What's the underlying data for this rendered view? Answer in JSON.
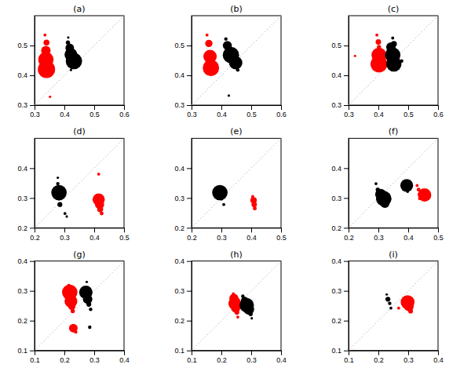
{
  "chart_data": [
    {
      "type": "scatter",
      "title": "(a)",
      "xlim": [
        0.3,
        0.6
      ],
      "ylim": [
        0.3,
        0.6
      ],
      "xticks": [
        0.3,
        0.4,
        0.5,
        0.6
      ],
      "yticks": [
        0.3,
        0.4,
        0.5
      ],
      "series": [
        {
          "color": "#ff0000",
          "x": [
            0.335,
            0.34,
            0.338,
            0.338,
            0.34,
            0.35,
            0.352
          ],
          "values": [
            0.535,
            0.51,
            0.483,
            0.453,
            0.42,
            0.403,
            0.328
          ],
          "size": [
            3,
            12,
            30,
            80,
            100,
            6,
            2
          ]
        },
        {
          "color": "#000000",
          "x": [
            0.413,
            0.412,
            0.418,
            0.422,
            0.432,
            0.448,
            0.422
          ],
          "values": [
            0.527,
            0.51,
            0.492,
            0.47,
            0.448,
            0.438,
            0.418
          ],
          "size": [
            2,
            6,
            25,
            55,
            90,
            5,
            2
          ]
        }
      ]
    },
    {
      "type": "scatter",
      "title": "(b)",
      "xlim": [
        0.3,
        0.6
      ],
      "ylim": [
        0.3,
        0.6
      ],
      "xticks": [
        0.3,
        0.4,
        0.5,
        0.6
      ],
      "yticks": [
        0.3,
        0.4,
        0.5
      ],
      "series": [
        {
          "color": "#ff0000",
          "x": [
            0.352,
            0.358,
            0.362,
            0.365,
            0.368,
            0.348
          ],
          "values": [
            0.535,
            0.507,
            0.463,
            0.425,
            0.405,
            0.418
          ],
          "size": [
            3,
            18,
            60,
            90,
            5,
            3
          ]
        },
        {
          "color": "#000000",
          "x": [
            0.415,
            0.42,
            0.432,
            0.448,
            0.455,
            0.425
          ],
          "values": [
            0.522,
            0.5,
            0.468,
            0.442,
            0.418,
            0.332
          ],
          "size": [
            4,
            28,
            90,
            60,
            4,
            2
          ]
        }
      ]
    },
    {
      "type": "scatter",
      "title": "(c)",
      "xlim": [
        0.3,
        0.6
      ],
      "ylim": [
        0.3,
        0.6
      ],
      "xticks": [
        0.3,
        0.4,
        0.5,
        0.6
      ],
      "yticks": [
        0.3,
        0.4,
        0.5
      ],
      "series": [
        {
          "color": "#ff0000",
          "x": [
            0.395,
            0.4,
            0.402,
            0.402,
            0.402,
            0.405,
            0.322
          ],
          "values": [
            0.535,
            0.512,
            0.495,
            0.468,
            0.438,
            0.418,
            0.465
          ],
          "size": [
            3,
            10,
            6,
            75,
            95,
            4,
            2
          ]
        },
        {
          "color": "#000000",
          "x": [
            0.448,
            0.452,
            0.442,
            0.448,
            0.452,
            0.462,
            0.478
          ],
          "values": [
            0.525,
            0.505,
            0.495,
            0.468,
            0.438,
            0.448,
            0.448
          ],
          "size": [
            3,
            12,
            30,
            80,
            78,
            8,
            4
          ]
        }
      ]
    },
    {
      "type": "scatter",
      "title": "(d)",
      "xlim": [
        0.2,
        0.5
      ],
      "ylim": [
        0.2,
        0.5
      ],
      "xticks": [
        0.2,
        0.3,
        0.4,
        0.5
      ],
      "yticks": [
        0.2,
        0.3,
        0.4
      ],
      "series": [
        {
          "color": "#ff0000",
          "x": [
            0.415,
            0.412,
            0.415,
            0.418,
            0.42,
            0.425
          ],
          "values": [
            0.38,
            0.302,
            0.295,
            0.278,
            0.262,
            0.248
          ],
          "size": [
            3,
            3,
            50,
            28,
            12,
            5
          ]
        },
        {
          "color": "#000000",
          "x": [
            0.278,
            0.278,
            0.282,
            0.282,
            0.285,
            0.302,
            0.308
          ],
          "values": [
            0.368,
            0.348,
            0.318,
            0.298,
            0.278,
            0.248,
            0.238
          ],
          "size": [
            2,
            4,
            80,
            5,
            8,
            3,
            2
          ]
        }
      ]
    },
    {
      "type": "scatter",
      "title": "(e)",
      "xlim": [
        0.2,
        0.5
      ],
      "ylim": [
        0.2,
        0.5
      ],
      "xticks": [
        0.2,
        0.3,
        0.4,
        0.5
      ],
      "yticks": [
        0.2,
        0.3,
        0.4
      ],
      "series": [
        {
          "color": "#ff0000",
          "x": [
            0.405,
            0.408,
            0.41,
            0.412
          ],
          "values": [
            0.305,
            0.292,
            0.278,
            0.265
          ],
          "size": [
            3,
            14,
            10,
            5
          ]
        },
        {
          "color": "#000000",
          "x": [
            0.292,
            0.295,
            0.3,
            0.308
          ],
          "values": [
            0.338,
            0.318,
            0.298,
            0.278
          ],
          "size": [
            2,
            80,
            5,
            3
          ]
        }
      ]
    },
    {
      "type": "scatter",
      "title": "(f)",
      "xlim": [
        0.2,
        0.5
      ],
      "ylim": [
        0.2,
        0.5
      ],
      "xticks": [
        0.2,
        0.3,
        0.4,
        0.5
      ],
      "yticks": [
        0.2,
        0.3,
        0.4
      ],
      "series": [
        {
          "color": "#ff0000",
          "x": [
            0.43,
            0.435,
            0.44,
            0.438,
            0.455
          ],
          "values": [
            0.342,
            0.328,
            0.312,
            0.298,
            0.31
          ],
          "size": [
            3,
            5,
            8,
            3,
            60
          ]
        },
        {
          "color": "#000000",
          "x": [
            0.292,
            0.298,
            0.308,
            0.318,
            0.322,
            0.395,
            0.398
          ],
          "values": [
            0.348,
            0.328,
            0.312,
            0.298,
            0.282,
            0.342,
            0.322
          ],
          "size": [
            3,
            6,
            42,
            80,
            28,
            55,
            3
          ]
        }
      ]
    },
    {
      "type": "scatter",
      "title": "(g)",
      "xlim": [
        0.1,
        0.4
      ],
      "ylim": [
        0.1,
        0.4
      ],
      "xticks": [
        0.1,
        0.2,
        0.3,
        0.4
      ],
      "yticks": [
        0.1,
        0.2,
        0.3,
        0.4
      ],
      "series": [
        {
          "color": "#ff0000",
          "x": [
            0.218,
            0.222,
            0.225,
            0.228,
            0.23,
            0.238,
            0.215
          ],
          "values": [
            0.295,
            0.265,
            0.248,
            0.232,
            0.175,
            0.162,
            0.318
          ],
          "size": [
            80,
            55,
            18,
            6,
            25,
            4,
            4
          ]
        },
        {
          "color": "#000000",
          "x": [
            0.272,
            0.278,
            0.282,
            0.288,
            0.285,
            0.275
          ],
          "values": [
            0.295,
            0.272,
            0.255,
            0.238,
            0.178,
            0.33
          ],
          "size": [
            60,
            30,
            8,
            4,
            4,
            2
          ]
        }
      ]
    },
    {
      "type": "scatter",
      "title": "(h)",
      "xlim": [
        0.1,
        0.4
      ],
      "ylim": [
        0.1,
        0.4
      ],
      "xticks": [
        0.1,
        0.2,
        0.3,
        0.4
      ],
      "yticks": [
        0.1,
        0.2,
        0.3,
        0.4
      ],
      "series": [
        {
          "color": "#ff0000",
          "x": [
            0.24,
            0.242,
            0.245,
            0.248,
            0.252,
            0.255
          ],
          "values": [
            0.29,
            0.275,
            0.258,
            0.242,
            0.228,
            0.212
          ],
          "size": [
            3,
            28,
            55,
            28,
            8,
            3
          ]
        },
        {
          "color": "#000000",
          "x": [
            0.272,
            0.278,
            0.285,
            0.292,
            0.298,
            0.302
          ],
          "values": [
            0.282,
            0.268,
            0.252,
            0.238,
            0.222,
            0.208
          ],
          "size": [
            4,
            18,
            70,
            38,
            6,
            2
          ]
        }
      ]
    },
    {
      "type": "scatter",
      "title": "(i)",
      "xlim": [
        0.1,
        0.4
      ],
      "ylim": [
        0.1,
        0.4
      ],
      "xticks": [
        0.1,
        0.2,
        0.3,
        0.4
      ],
      "yticks": [
        0.1,
        0.2,
        0.3,
        0.4
      ],
      "series": [
        {
          "color": "#ff0000",
          "x": [
            0.292,
            0.298,
            0.302,
            0.308,
            0.268
          ],
          "values": [
            0.278,
            0.262,
            0.248,
            0.232,
            0.242
          ],
          "size": [
            3,
            65,
            32,
            8,
            3
          ]
        },
        {
          "color": "#000000",
          "x": [
            0.228,
            0.232,
            0.238,
            0.242
          ],
          "values": [
            0.288,
            0.272,
            0.258,
            0.242
          ],
          "size": [
            2,
            8,
            4,
            3
          ]
        }
      ]
    }
  ]
}
